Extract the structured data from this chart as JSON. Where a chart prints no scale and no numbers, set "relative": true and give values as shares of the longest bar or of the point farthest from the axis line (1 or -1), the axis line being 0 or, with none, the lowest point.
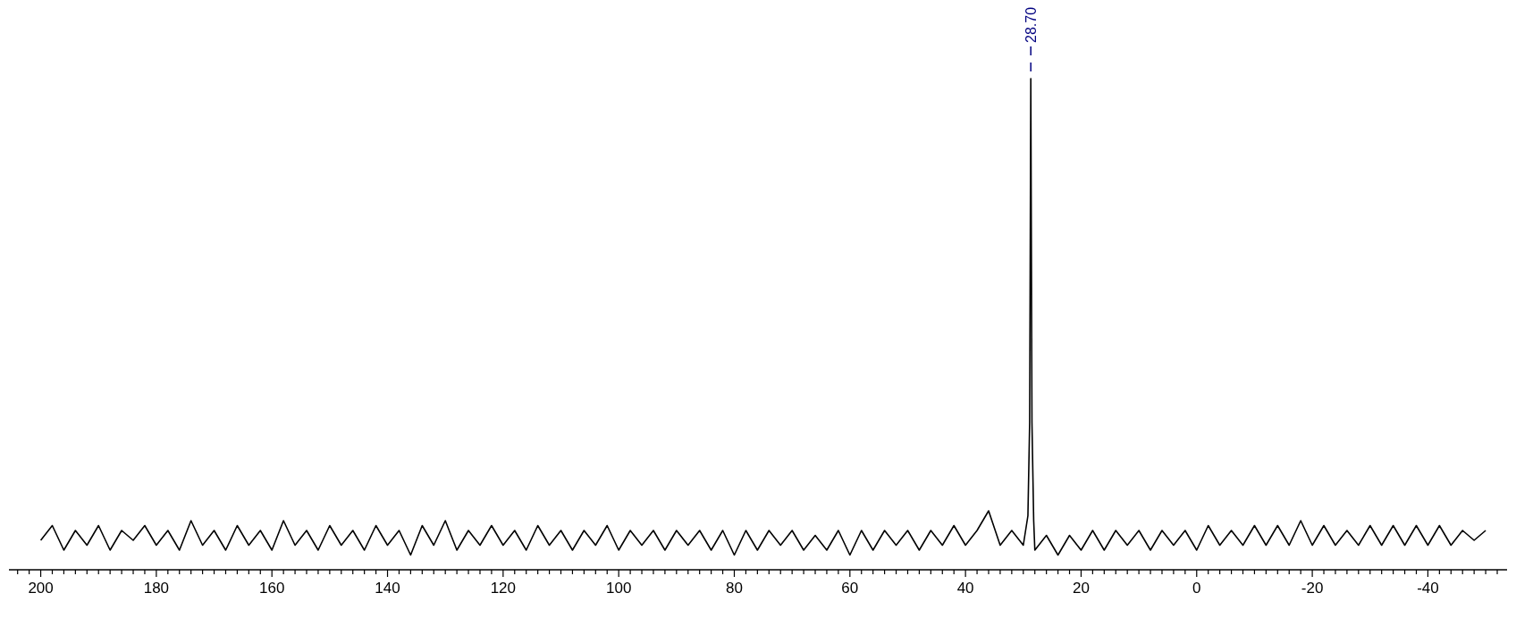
{
  "chart_data": {
    "type": "line",
    "relative": true,
    "tick_labels": "x",
    "grid": false,
    "line_style": "solid",
    "xlim": [
      205.5,
      -53.7
    ],
    "xticks": [
      {
        "value": 204,
        "label": null
      },
      {
        "value": 202,
        "label": null
      },
      200,
      {
        "value": 198,
        "label": null
      },
      {
        "value": 196,
        "label": null
      },
      {
        "value": 194,
        "label": null
      },
      {
        "value": 192,
        "label": null
      },
      {
        "value": 190,
        "label": null
      },
      {
        "value": 188,
        "label": null
      },
      {
        "value": 186,
        "label": null
      },
      {
        "value": 184,
        "label": null
      },
      {
        "value": 182,
        "label": null
      },
      180,
      {
        "value": 178,
        "label": null
      },
      {
        "value": 176,
        "label": null
      },
      {
        "value": 174,
        "label": null
      },
      {
        "value": 172,
        "label": null
      },
      {
        "value": 170,
        "label": null
      },
      {
        "value": 168,
        "label": null
      },
      {
        "value": 166,
        "label": null
      },
      {
        "value": 164,
        "label": null
      },
      {
        "value": 162,
        "label": null
      },
      160,
      {
        "value": 158,
        "label": null
      },
      {
        "value": 156,
        "label": null
      },
      {
        "value": 154,
        "label": null
      },
      {
        "value": 152,
        "label": null
      },
      {
        "value": 150,
        "label": null
      },
      {
        "value": 148,
        "label": null
      },
      {
        "value": 146,
        "label": null
      },
      {
        "value": 144,
        "label": null
      },
      {
        "value": 142,
        "label": null
      },
      140,
      {
        "value": 138,
        "label": null
      },
      {
        "value": 136,
        "label": null
      },
      {
        "value": 134,
        "label": null
      },
      {
        "value": 132,
        "label": null
      },
      {
        "value": 130,
        "label": null
      },
      {
        "value": 128,
        "label": null
      },
      {
        "value": 126,
        "label": null
      },
      {
        "value": 124,
        "label": null
      },
      {
        "value": 122,
        "label": null
      },
      120,
      {
        "value": 118,
        "label": null
      },
      {
        "value": 116,
        "label": null
      },
      {
        "value": 114,
        "label": null
      },
      {
        "value": 112,
        "label": null
      },
      {
        "value": 110,
        "label": null
      },
      {
        "value": 108,
        "label": null
      },
      {
        "value": 106,
        "label": null
      },
      {
        "value": 104,
        "label": null
      },
      {
        "value": 102,
        "label": null
      },
      100,
      {
        "value": 98,
        "label": null
      },
      {
        "value": 96,
        "label": null
      },
      {
        "value": 94,
        "label": null
      },
      {
        "value": 92,
        "label": null
      },
      {
        "value": 90,
        "label": null
      },
      {
        "value": 88,
        "label": null
      },
      {
        "value": 86,
        "label": null
      },
      {
        "value": 84,
        "label": null
      },
      {
        "value": 82,
        "label": null
      },
      80,
      {
        "value": 78,
        "label": null
      },
      {
        "value": 76,
        "label": null
      },
      {
        "value": 74,
        "label": null
      },
      {
        "value": 72,
        "label": null
      },
      {
        "value": 70,
        "label": null
      },
      {
        "value": 68,
        "label": null
      },
      {
        "value": 66,
        "label": null
      },
      {
        "value": 64,
        "label": null
      },
      {
        "value": 62,
        "label": null
      },
      60,
      {
        "value": 58,
        "label": null
      },
      {
        "value": 56,
        "label": null
      },
      {
        "value": 54,
        "label": null
      },
      {
        "value": 52,
        "label": null
      },
      {
        "value": 50,
        "label": null
      },
      {
        "value": 48,
        "label": null
      },
      {
        "value": 46,
        "label": null
      },
      {
        "value": 44,
        "label": null
      },
      {
        "value": 42,
        "label": null
      },
      40,
      {
        "value": 38,
        "label": null
      },
      {
        "value": 36,
        "label": null
      },
      {
        "value": 34,
        "label": null
      },
      {
        "value": 32,
        "label": null
      },
      {
        "value": 30,
        "label": null
      },
      {
        "value": 28,
        "label": null
      },
      {
        "value": 26,
        "label": null
      },
      {
        "value": 24,
        "label": null
      },
      {
        "value": 22,
        "label": null
      },
      20,
      {
        "value": 18,
        "label": null
      },
      {
        "value": 16,
        "label": null
      },
      {
        "value": 14,
        "label": null
      },
      {
        "value": 12,
        "label": null
      },
      {
        "value": 10,
        "label": null
      },
      {
        "value": 8,
        "label": null
      },
      {
        "value": 6,
        "label": null
      },
      {
        "value": 4,
        "label": null
      },
      {
        "value": 2,
        "label": null
      },
      0,
      {
        "value": -2,
        "label": null
      },
      {
        "value": -4,
        "label": null
      },
      {
        "value": -6,
        "label": null
      },
      {
        "value": -8,
        "label": null
      },
      {
        "value": -10,
        "label": null
      },
      {
        "value": -12,
        "label": null
      },
      {
        "value": -14,
        "label": null
      },
      {
        "value": -16,
        "label": null
      },
      {
        "value": -18,
        "label": null
      },
      -20,
      {
        "value": -22,
        "label": null
      },
      {
        "value": -24,
        "label": null
      },
      {
        "value": -26,
        "label": null
      },
      {
        "value": -28,
        "label": null
      },
      {
        "value": -30,
        "label": null
      },
      {
        "value": -32,
        "label": null
      },
      {
        "value": -34,
        "label": null
      },
      {
        "value": -36,
        "label": null
      },
      {
        "value": -38,
        "label": null
      },
      -40,
      {
        "value": -42,
        "label": null
      },
      {
        "value": -44,
        "label": null
      },
      {
        "value": -46,
        "label": null
      },
      {
        "value": -48,
        "label": null
      },
      {
        "value": -50,
        "label": null
      },
      {
        "value": -52,
        "label": null
      }
    ],
    "annotations": [
      {
        "text": "28.70",
        "x": 28.7,
        "y": 1
      }
    ],
    "series": [
      {
        "color": "#000000",
        "x": [
          200,
          198,
          196,
          194,
          192,
          190,
          188,
          186,
          184,
          182,
          180,
          178,
          176,
          174,
          172,
          170,
          168,
          166,
          164,
          162,
          160,
          158,
          156,
          154,
          152,
          150,
          148,
          146,
          144,
          142,
          140,
          138,
          136,
          134,
          132,
          130,
          128,
          126,
          124,
          122,
          120,
          118,
          116,
          114,
          112,
          110,
          108,
          106,
          104,
          102,
          100,
          98,
          96,
          94,
          92,
          90,
          88,
          86,
          84,
          82,
          80,
          78,
          76,
          74,
          72,
          70,
          68,
          66,
          64,
          62,
          60,
          58,
          56,
          54,
          52,
          50,
          48,
          46,
          44,
          42,
          40,
          38,
          36,
          34,
          32,
          30,
          29.2,
          28.9,
          28.7,
          28.5,
          28.2,
          28,
          26,
          24,
          22,
          20,
          18,
          16,
          14,
          12,
          10,
          8,
          6,
          4,
          2,
          0,
          -2,
          -4,
          -6,
          -8,
          -10,
          -12,
          -14,
          -16,
          -18,
          -20,
          -22,
          -24,
          -26,
          -28,
          -30,
          -32,
          -34,
          -36,
          -38,
          -40,
          -42,
          -44,
          -46,
          -48,
          -50
        ],
        "values": [
          0.06,
          0.09,
          0.04,
          0.08,
          0.05,
          0.09,
          0.04,
          0.08,
          0.06,
          0.09,
          0.05,
          0.08,
          0.04,
          0.1,
          0.05,
          0.08,
          0.04,
          0.09,
          0.05,
          0.08,
          0.04,
          0.1,
          0.05,
          0.08,
          0.04,
          0.09,
          0.05,
          0.08,
          0.04,
          0.09,
          0.05,
          0.08,
          0.03,
          0.09,
          0.05,
          0.1,
          0.04,
          0.08,
          0.05,
          0.09,
          0.05,
          0.08,
          0.04,
          0.09,
          0.05,
          0.08,
          0.04,
          0.08,
          0.05,
          0.09,
          0.04,
          0.08,
          0.05,
          0.08,
          0.04,
          0.08,
          0.05,
          0.08,
          0.04,
          0.08,
          0.03,
          0.08,
          0.04,
          0.08,
          0.05,
          0.08,
          0.04,
          0.07,
          0.04,
          0.08,
          0.03,
          0.08,
          0.04,
          0.08,
          0.05,
          0.08,
          0.04,
          0.08,
          0.05,
          0.09,
          0.05,
          0.08,
          0.12,
          0.05,
          0.08,
          0.05,
          0.11,
          0.3,
          1.0,
          0.3,
          0.1,
          0.04,
          0.07,
          0.03,
          0.07,
          0.04,
          0.08,
          0.04,
          0.08,
          0.05,
          0.08,
          0.04,
          0.08,
          0.05,
          0.08,
          0.04,
          0.09,
          0.05,
          0.08,
          0.05,
          0.09,
          0.05,
          0.09,
          0.05,
          0.1,
          0.05,
          0.09,
          0.05,
          0.08,
          0.05,
          0.09,
          0.05,
          0.09,
          0.05,
          0.09,
          0.05,
          0.09,
          0.05,
          0.08,
          0.06,
          0.08
        ]
      }
    ]
  }
}
